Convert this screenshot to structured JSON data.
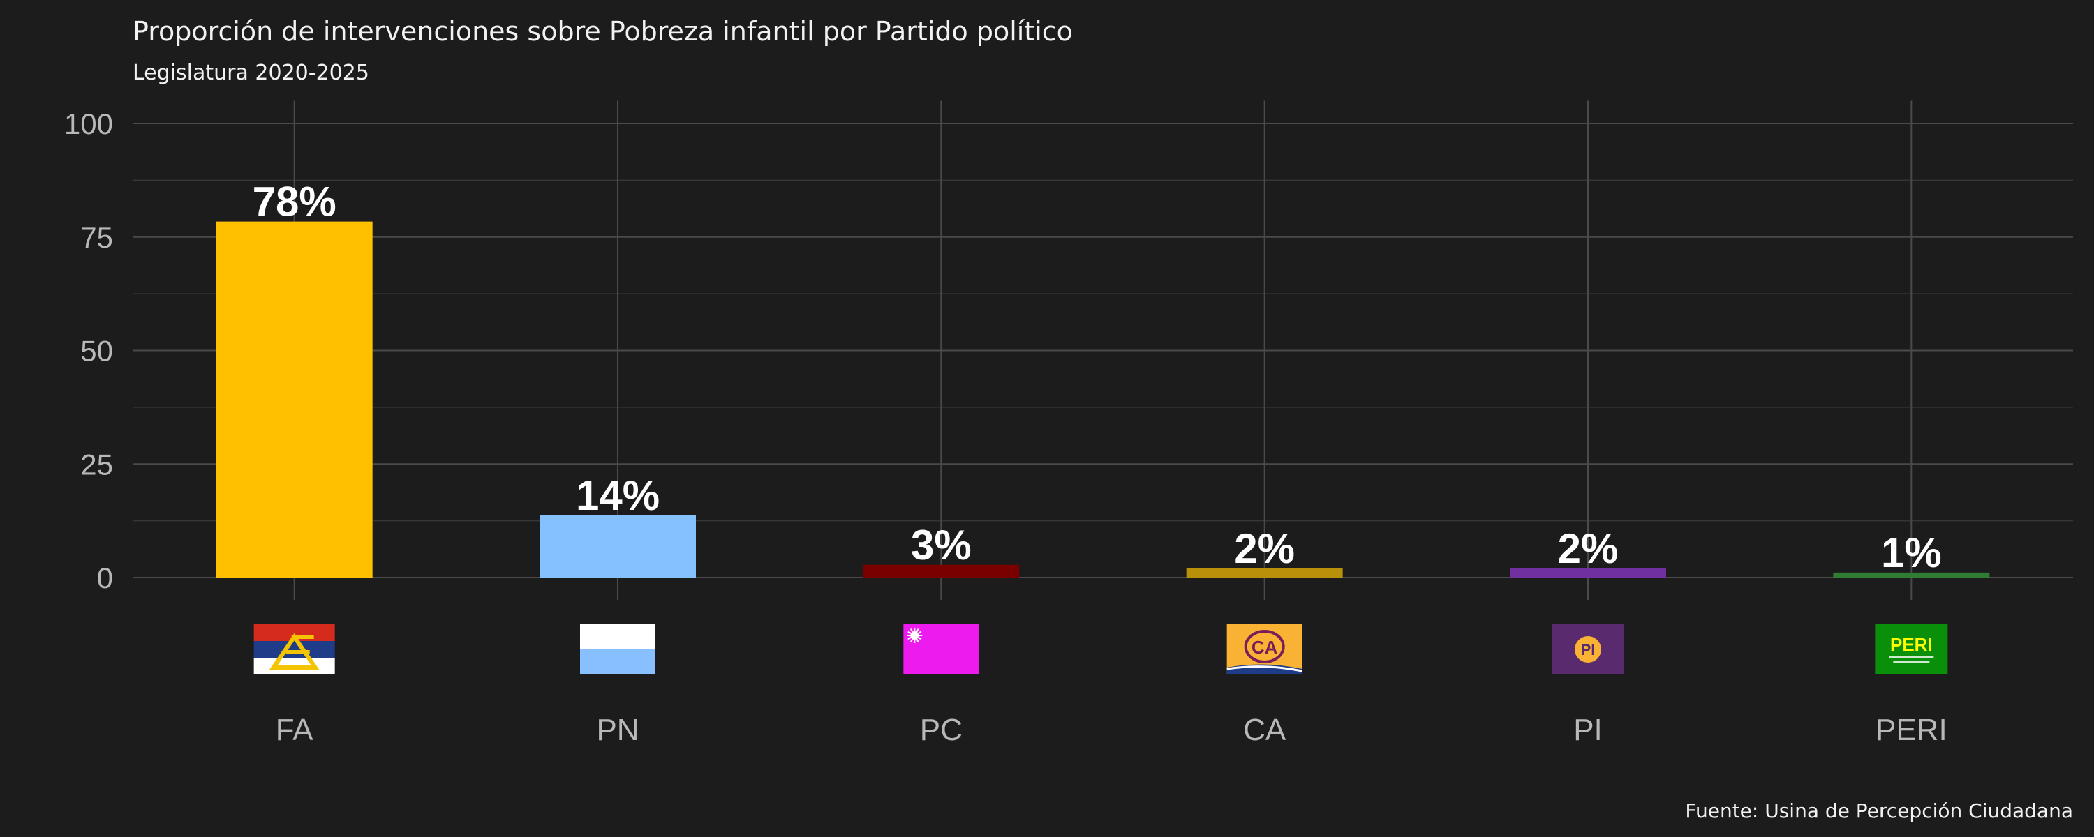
{
  "chart_data": {
    "type": "bar",
    "title": "Proporción de intervenciones sobre Pobreza infantil por Partido político",
    "subtitle": "Legislatura 2020-2025",
    "caption": "Fuente: Usina de Percepción Ciudadana",
    "xlabel": "",
    "ylabel": "",
    "ylim": [
      0,
      105
    ],
    "yticks": [
      0,
      25,
      50,
      75,
      100
    ],
    "grid": true,
    "legend": "none",
    "categories": [
      "FA",
      "PN",
      "PC",
      "CA",
      "PI",
      "PERI"
    ],
    "values": [
      78.4,
      13.7,
      2.8,
      2.0,
      2.0,
      1.1
    ],
    "data_labels": [
      "78%",
      "14%",
      "3%",
      "2%",
      "2%",
      "1%"
    ],
    "colors": [
      "#ffc000",
      "#85c1ff",
      "#7a0000",
      "#b8900a",
      "#7030a0",
      "#2e7d32"
    ],
    "logos": [
      {
        "party": "FA",
        "icon": "fa-flag-icon",
        "colors": [
          "#d52b1e",
          "#1f3c88",
          "#ffffff",
          "#f5c400"
        ]
      },
      {
        "party": "PN",
        "icon": "pn-flag-icon",
        "colors": [
          "#ffffff",
          "#87bfff"
        ]
      },
      {
        "party": "PC",
        "icon": "pc-flag-icon",
        "colors": [
          "#ee1bee",
          "#ffffff"
        ]
      },
      {
        "party": "CA",
        "icon": "ca-logo-icon",
        "text": "CA",
        "colors": [
          "#f9b234",
          "#7a1e5a",
          "#1f3c88"
        ]
      },
      {
        "party": "PI",
        "icon": "pi-logo-icon",
        "text": "PI",
        "colors": [
          "#5a2a6e",
          "#f9b234"
        ]
      },
      {
        "party": "PERI",
        "icon": "peri-logo-icon",
        "text": "PERI",
        "colors": [
          "#0a8f0a",
          "#ffff00"
        ]
      }
    ]
  }
}
